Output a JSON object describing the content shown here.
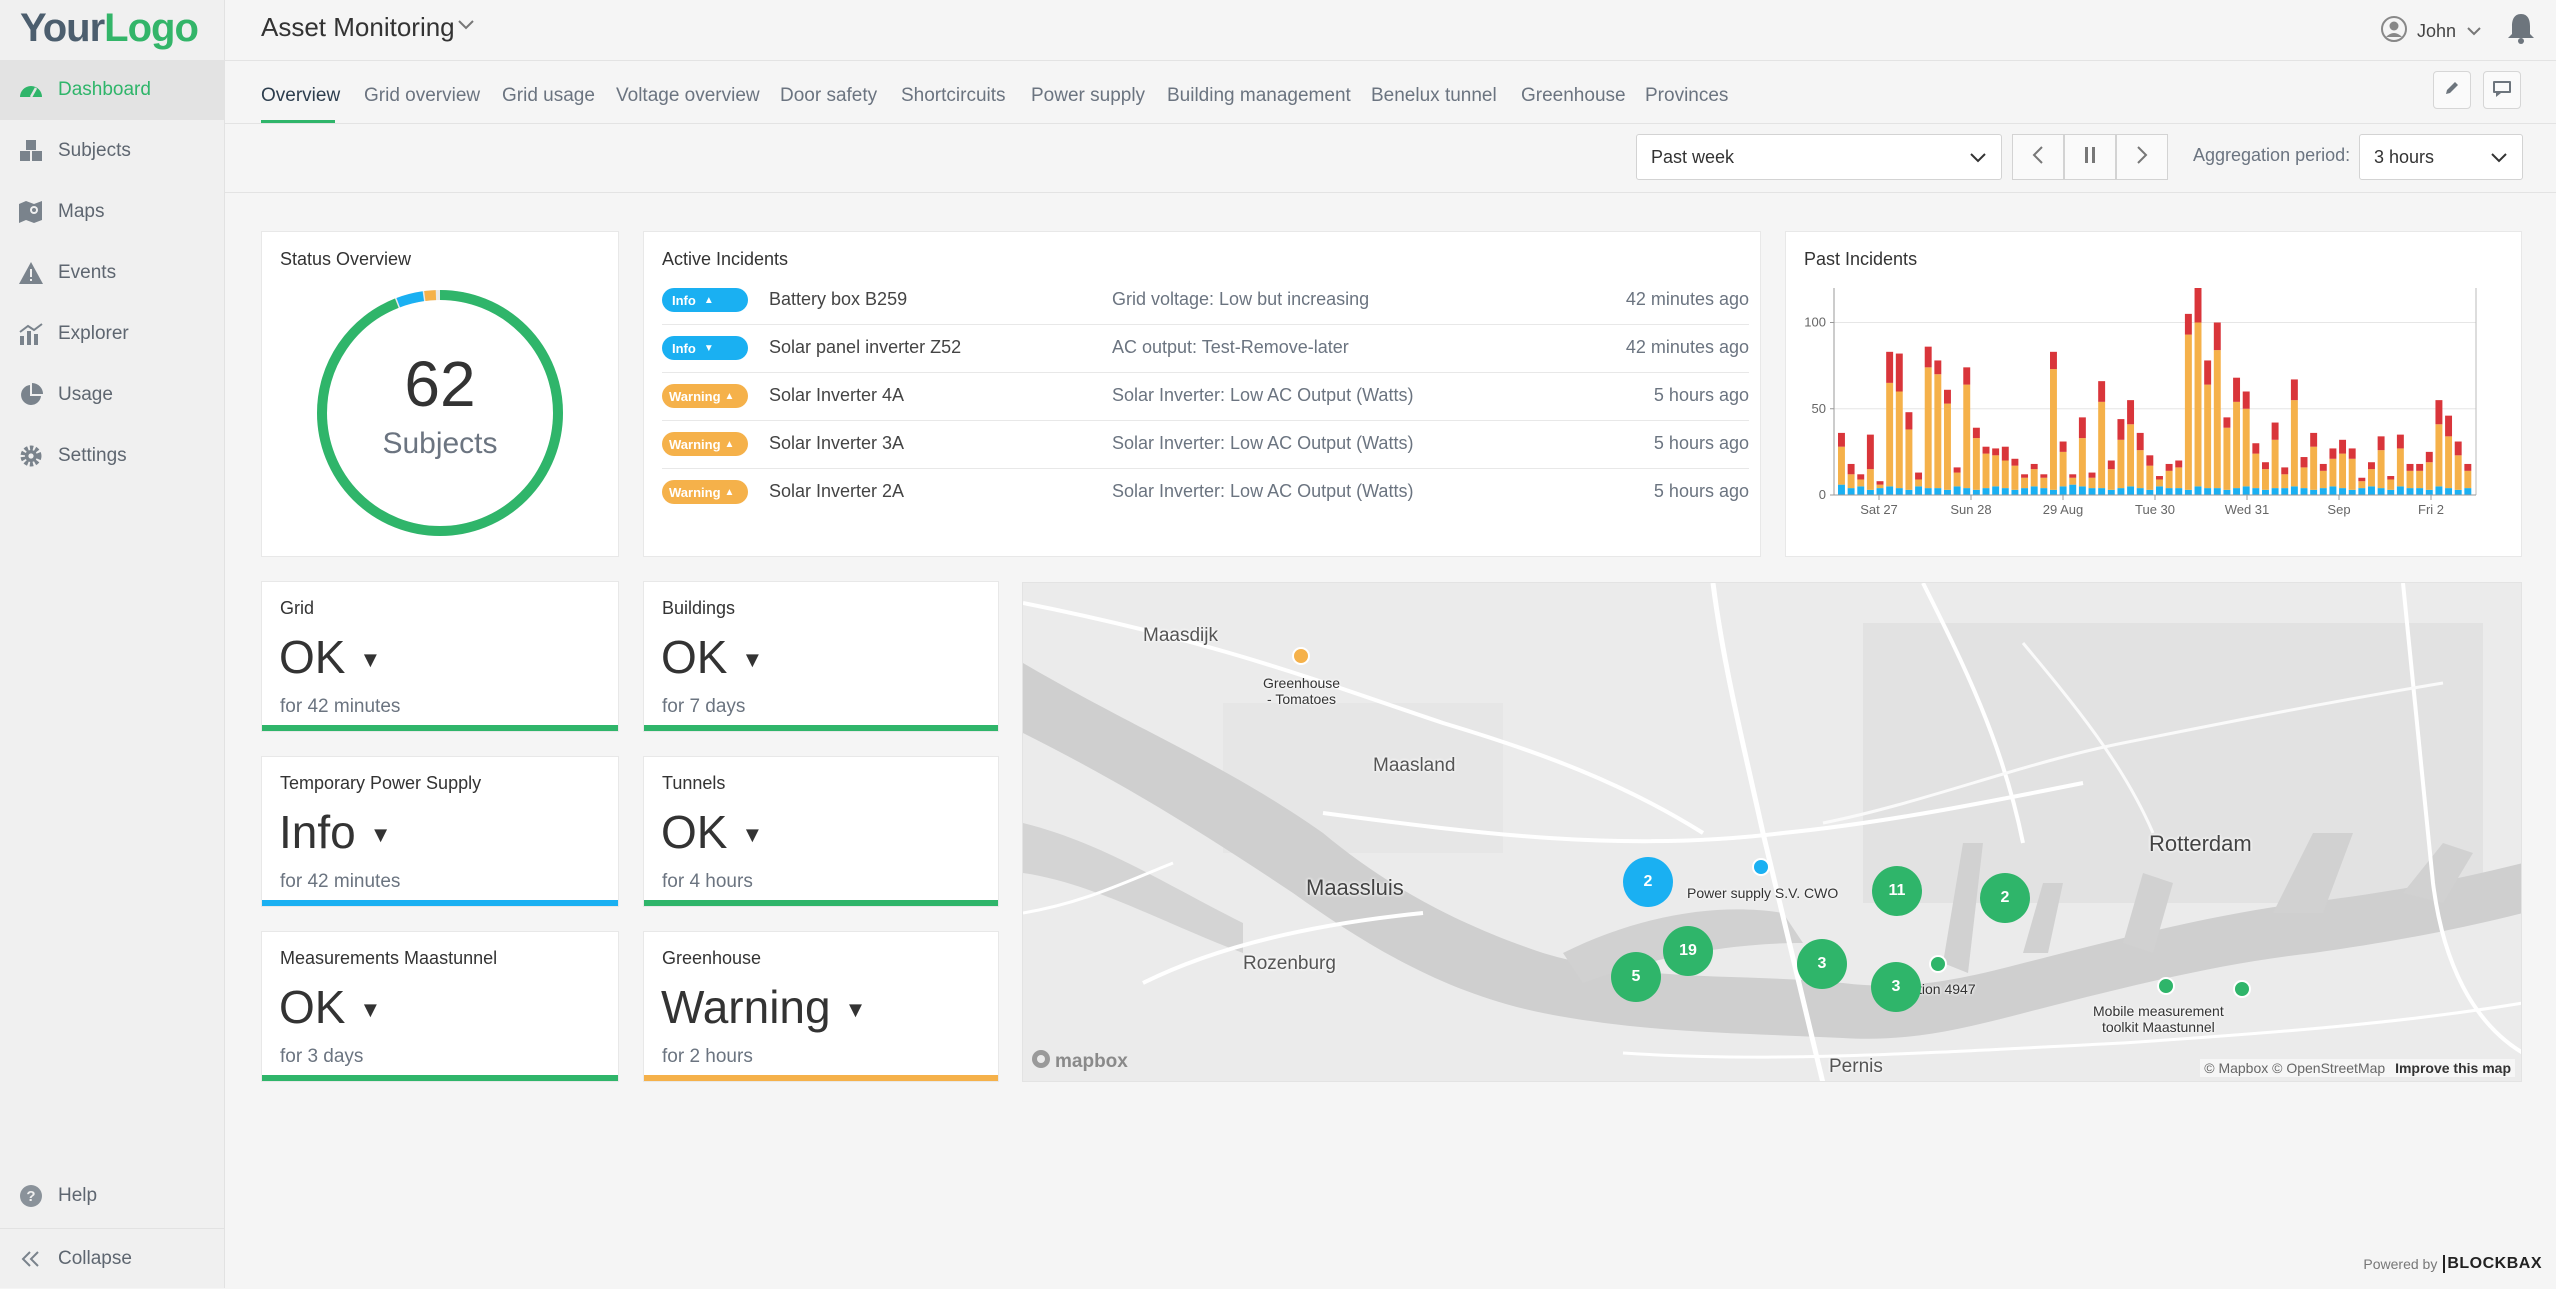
{
  "logo": {
    "part1": "Your",
    "part2": "Logo"
  },
  "sidebar": {
    "items": [
      {
        "label": "Dashboard",
        "icon": "dashboard-icon",
        "active": true
      },
      {
        "label": "Subjects",
        "icon": "cubes-icon"
      },
      {
        "label": "Maps",
        "icon": "map-icon"
      },
      {
        "label": "Events",
        "icon": "warning-icon"
      },
      {
        "label": "Explorer",
        "icon": "bar-chart-icon"
      },
      {
        "label": "Usage",
        "icon": "pie-chart-icon"
      },
      {
        "label": "Settings",
        "icon": "gear-icon"
      }
    ],
    "help": "Help",
    "collapse": "Collapse"
  },
  "header": {
    "title": "Asset Monitoring",
    "user": "John"
  },
  "tabs": [
    "Overview",
    "Grid overview",
    "Grid usage",
    "Voltage overview",
    "Door safety",
    "Shortcircuits",
    "Power supply",
    "Building management",
    "Benelux tunnel",
    "Greenhouse",
    "Provinces"
  ],
  "controls": {
    "period": "Past week",
    "aggregation_label": "Aggregation period:",
    "aggregation_value": "3 hours"
  },
  "status_overview": {
    "title": "Status Overview",
    "count": "62",
    "label": "Subjects",
    "ok_fraction": 0.94,
    "info_fraction": 0.035,
    "warning_fraction": 0.015
  },
  "active_incidents": {
    "title": "Active Incidents",
    "rows": [
      {
        "level": "Info",
        "arrow": "▲",
        "subject": "Battery box B259",
        "description": "Grid voltage: Low but increasing",
        "time": "42 minutes ago"
      },
      {
        "level": "Info",
        "arrow": "▼",
        "subject": "Solar panel inverter Z52",
        "description": "AC output: Test-Remove-later",
        "time": "42 minutes ago"
      },
      {
        "level": "Warning",
        "arrow": "▲",
        "subject": "Solar Inverter 4A",
        "description": "Solar Inverter: Low AC Output (Watts)",
        "time": "5 hours ago"
      },
      {
        "level": "Warning",
        "arrow": "▲",
        "subject": "Solar Inverter 3A",
        "description": "Solar Inverter: Low AC Output (Watts)",
        "time": "5 hours ago"
      },
      {
        "level": "Warning",
        "arrow": "▲",
        "subject": "Solar Inverter 2A",
        "description": "Solar Inverter: Low AC Output (Watts)",
        "time": "5 hours ago"
      }
    ]
  },
  "past_incidents": {
    "title": "Past Incidents"
  },
  "chart_data": {
    "type": "bar",
    "stacked": true,
    "ylim": [
      0,
      120
    ],
    "yticks": [
      0,
      50,
      100
    ],
    "xtick_labels": [
      "Sat 27",
      "Sun 28",
      "29 Aug",
      "Tue 30",
      "Wed 31",
      "Sep",
      "Fri 2"
    ],
    "series": [
      {
        "color": "#1ab0f2",
        "values": [
          6,
          4,
          5,
          3,
          4,
          5,
          4,
          3,
          5,
          4,
          4,
          3,
          5,
          4,
          3,
          4,
          5,
          4,
          3,
          4,
          5,
          4,
          3,
          5,
          6,
          5,
          4,
          4,
          3,
          4,
          5,
          4,
          3,
          5,
          4,
          4,
          3,
          5,
          4,
          4,
          3,
          4,
          5,
          4,
          3,
          4,
          4,
          5,
          4,
          3,
          4,
          5,
          4,
          3,
          4,
          5,
          4,
          3,
          5,
          4,
          4,
          3,
          5,
          4,
          3,
          4
        ]
      },
      {
        "color": "#f5b14a",
        "values": [
          22,
          8,
          4,
          12,
          2,
          60,
          56,
          35,
          4,
          70,
          66,
          50,
          8,
          60,
          30,
          20,
          18,
          16,
          14,
          6,
          10,
          6,
          70,
          20,
          4,
          28,
          6,
          50,
          12,
          28,
          36,
          22,
          14,
          4,
          10,
          12,
          90,
          95,
          60,
          80,
          36,
          50,
          45,
          20,
          12,
          28,
          8,
          50,
          12,
          25,
          10,
          16,
          20,
          18,
          4,
          10,
          22,
          6,
          22,
          10,
          10,
          16,
          36,
          30,
          20,
          10
        ]
      },
      {
        "color": "#d9353a",
        "values": [
          8,
          6,
          3,
          20,
          2,
          18,
          22,
          10,
          4,
          12,
          8,
          8,
          3,
          10,
          6,
          4,
          4,
          8,
          4,
          2,
          3,
          2,
          10,
          6,
          2,
          12,
          3,
          12,
          5,
          12,
          14,
          10,
          6,
          2,
          4,
          4,
          12,
          20,
          14,
          16,
          6,
          14,
          10,
          6,
          4,
          10,
          4,
          12,
          6,
          8,
          4,
          6,
          8,
          6,
          2,
          4,
          8,
          2,
          8,
          4,
          4,
          6,
          14,
          12,
          8,
          4
        ]
      }
    ]
  },
  "tiles": [
    {
      "title": "Grid",
      "value": "OK",
      "sub": "for 42 minutes",
      "color": "#2fb56a"
    },
    {
      "title": "Buildings",
      "value": "OK",
      "sub": "for 7 days",
      "color": "#2fb56a"
    },
    {
      "title": "Temporary Power Supply",
      "value": "Info",
      "sub": "for 42 minutes",
      "color": "#1ab0f2"
    },
    {
      "title": "Tunnels",
      "value": "OK",
      "sub": "for 4 hours",
      "color": "#2fb56a"
    },
    {
      "title": "Measurements Maastunnel",
      "value": "OK",
      "sub": "for 3 days",
      "color": "#2fb56a"
    },
    {
      "title": "Greenhouse",
      "value": "Warning",
      "sub": "for 2 hours",
      "color": "#f5b14a"
    }
  ],
  "tile_arrow": "▼",
  "map": {
    "towns": [
      "Maasdijk",
      "Maasland",
      "Maassluis",
      "Rozenburg",
      "Rotterdam",
      "Pernis"
    ],
    "labels": [
      "Greenhouse\n- Tomatoes",
      "Power supply S.V. CWO",
      "Station 4947",
      "Mobile measurement\ntoolkit Maastunnel"
    ],
    "clusters": [
      "2",
      "11",
      "2",
      "19",
      "5",
      "3",
      "3"
    ],
    "attribution": "© Mapbox © OpenStreetMap",
    "improve": "Improve this map",
    "mapbox_logo": "mapbox"
  },
  "footer": {
    "powered_by": "Powered by",
    "brand": "BLOCKBAX"
  },
  "colors": {
    "ok": "#2fb56a",
    "info": "#1ab0f2",
    "warning": "#f5b14a",
    "critical": "#d9353a"
  }
}
